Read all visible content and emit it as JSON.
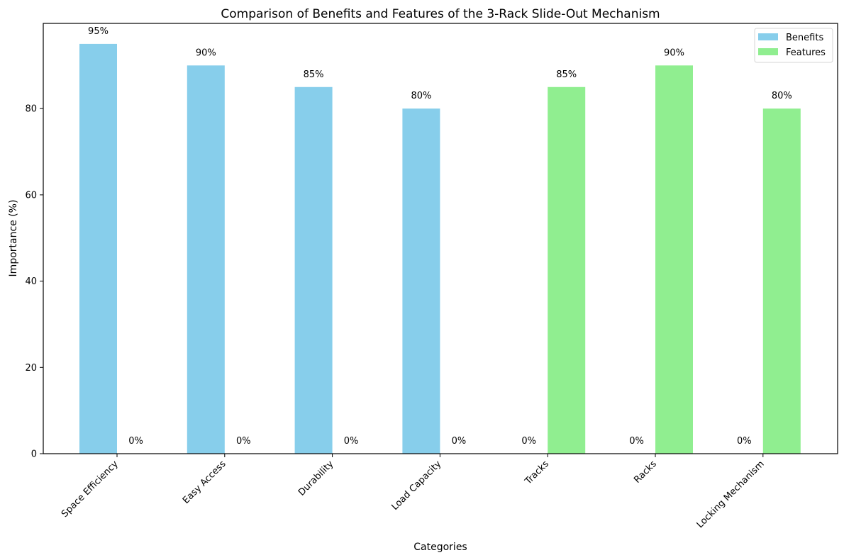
{
  "chart_data": {
    "type": "bar",
    "title": "Comparison of Benefits and Features of the 3-Rack Slide-Out Mechanism",
    "xlabel": "Categories",
    "ylabel": "Importance (%)",
    "categories": [
      "Space Efficiency",
      "Easy Access",
      "Durability",
      "Load Capacity",
      "Tracks",
      "Racks",
      "Locking Mechanism"
    ],
    "series": [
      {
        "name": "Benefits",
        "color": "#87CEEB",
        "values": [
          95,
          90,
          85,
          80,
          0,
          0,
          0
        ]
      },
      {
        "name": "Features",
        "color": "#90EE90",
        "values": [
          0,
          0,
          0,
          0,
          85,
          90,
          80
        ]
      }
    ],
    "data_labels": {
      "Benefits": [
        "95%",
        "90%",
        "85%",
        "80%",
        "0%",
        "0%",
        "0%"
      ],
      "Features": [
        "0%",
        "0%",
        "0%",
        "0%",
        "85%",
        "90%",
        "80%"
      ]
    },
    "yticks": [
      0,
      20,
      40,
      60,
      80
    ],
    "ylim": [
      0,
      99.75
    ],
    "grid": false,
    "legend_position": "upper right"
  }
}
